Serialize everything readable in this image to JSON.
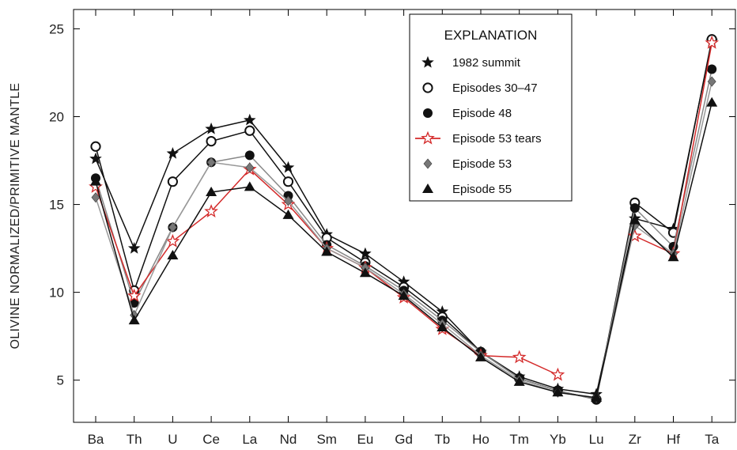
{
  "chart_data": {
    "type": "line",
    "ylabel": "OLIVINE NORMALIZED/PRIMITIVE MANTLE",
    "xlabel": "",
    "categories": [
      "Ba",
      "Th",
      "U",
      "Ce",
      "La",
      "Nd",
      "Sm",
      "Eu",
      "Gd",
      "Tb",
      "Ho",
      "Tm",
      "Yb",
      "Lu",
      "Zr",
      "Hf",
      "Ta"
    ],
    "yticks": [
      5,
      10,
      15,
      20,
      25
    ],
    "ylim": [
      2.6,
      26.1
    ],
    "legend": {
      "title": "EXPLANATION",
      "placement": "top-right"
    },
    "series": [
      {
        "name": "1982 summit",
        "marker": "star",
        "color": "#111111",
        "line_color": "#111111",
        "values": [
          17.6,
          12.5,
          17.9,
          19.3,
          19.8,
          17.1,
          13.3,
          12.2,
          10.6,
          8.9,
          6.6,
          5.2,
          4.5,
          4.2,
          14.2,
          13.6,
          24.3
        ]
      },
      {
        "name": "Episodes 30–47",
        "marker": "circle-open",
        "color": "#111111",
        "line_color": "#111111",
        "values": [
          18.3,
          10.1,
          16.3,
          18.6,
          19.2,
          16.3,
          13.1,
          11.7,
          10.3,
          8.6,
          6.6,
          5.1,
          4.4,
          3.9,
          15.1,
          13.4,
          24.4
        ]
      },
      {
        "name": "Episode 48",
        "marker": "circle-filled",
        "color": "#111111",
        "line_color": "#888888",
        "values": [
          16.5,
          9.4,
          13.7,
          17.4,
          17.8,
          15.5,
          12.7,
          11.5,
          10.1,
          8.4,
          6.6,
          5.1,
          4.4,
          3.9,
          14.8,
          12.6,
          22.7
        ]
      },
      {
        "name": "Episode 53 tears",
        "marker": "star-open",
        "color": "#d42a2a",
        "line_color": "#d42a2a",
        "values": [
          16.0,
          9.8,
          12.9,
          14.6,
          17.0,
          15.0,
          12.5,
          11.4,
          9.7,
          7.9,
          6.4,
          6.3,
          5.3,
          null,
          13.2,
          12.2,
          24.2
        ]
      },
      {
        "name": "Episode 53",
        "marker": "diamond",
        "color": "#777777",
        "line_color": "#999999",
        "values": [
          15.4,
          8.7,
          13.7,
          17.4,
          17.1,
          15.2,
          12.5,
          11.4,
          9.9,
          8.2,
          6.4,
          5.0,
          4.3,
          4.0,
          13.8,
          12.2,
          22.0
        ]
      },
      {
        "name": "Episode 55",
        "marker": "triangle",
        "color": "#111111",
        "line_color": "#111111",
        "values": [
          16.3,
          8.4,
          12.1,
          15.7,
          16.0,
          14.4,
          12.3,
          11.1,
          9.8,
          8.0,
          6.3,
          4.9,
          4.3,
          4.0,
          14.1,
          12.0,
          20.8
        ]
      }
    ]
  }
}
